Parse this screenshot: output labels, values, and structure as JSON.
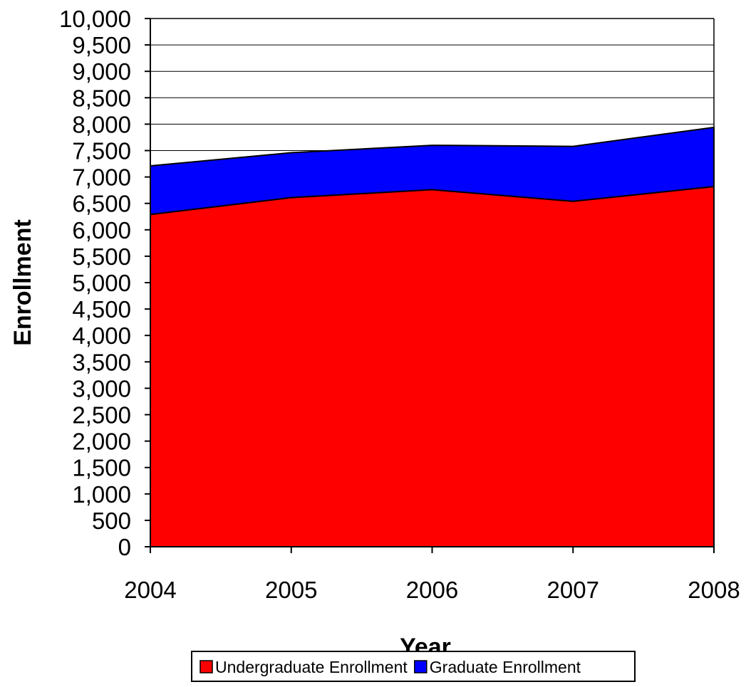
{
  "chart_data": {
    "type": "area",
    "stacked": true,
    "title": "",
    "xlabel": "Year",
    "ylabel": "Enrollment",
    "categories": [
      "2004",
      "2005",
      "2006",
      "2007",
      "2008"
    ],
    "ylim": [
      0,
      10000
    ],
    "ytick_step": 500,
    "ytick_labels": [
      "0",
      "500",
      "1,000",
      "1,500",
      "2,000",
      "2,500",
      "3,000",
      "3,500",
      "4,000",
      "4,500",
      "5,000",
      "5,500",
      "6,000",
      "6,500",
      "7,000",
      "7,500",
      "8,000",
      "8,500",
      "9,000",
      "9,500",
      "10,000"
    ],
    "grid": "horizontal lines above data at 7,500 and 8,000 visible",
    "legend_position": "bottom",
    "series": [
      {
        "name": "Undergraduate Enrollment",
        "color": "#ff0000",
        "values": [
          6290,
          6610,
          6760,
          6540,
          6820
        ]
      },
      {
        "name": "Graduate Enrollment",
        "color": "#0000ff",
        "values": [
          920,
          850,
          840,
          1040,
          1120
        ]
      }
    ]
  }
}
